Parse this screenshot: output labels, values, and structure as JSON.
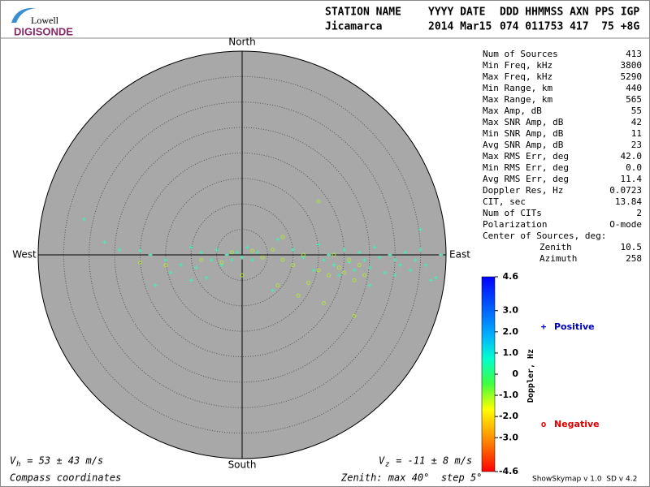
{
  "logo": {
    "top": "Lowell",
    "bottom": "DIGISONDE"
  },
  "header": {
    "labels": [
      "STATION NAME",
      "YYYY DATE",
      "DDD HHMMSS AXN PPS IGP"
    ],
    "values": [
      "Jicamarca",
      "2014 Mar15",
      "074 011753 417  75 +8G"
    ]
  },
  "stats": [
    {
      "label": "Num of Sources",
      "value": "413"
    },
    {
      "label": "Min Freq, kHz",
      "value": "3800"
    },
    {
      "label": "Max Freq, kHz",
      "value": "5290"
    },
    {
      "label": "Min Range, km",
      "value": "440"
    },
    {
      "label": "Max Range, km",
      "value": "565"
    },
    {
      "label": "Max Amp, dB",
      "value": "55"
    },
    {
      "label": "Max SNR Amp, dB",
      "value": "42"
    },
    {
      "label": "Min SNR Amp, dB",
      "value": "11"
    },
    {
      "label": "Avg SNR Amp, dB",
      "value": "23"
    },
    {
      "label": "Max RMS Err, deg",
      "value": "42.0"
    },
    {
      "label": "Min RMS Err, deg",
      "value": "0.0"
    },
    {
      "label": "Avg RMS Err, deg",
      "value": "11.4"
    },
    {
      "label": "Doppler Res, Hz",
      "value": "0.0723"
    },
    {
      "label": "CIT, sec",
      "value": "13.84"
    },
    {
      "label": "Num of CITs",
      "value": "2"
    },
    {
      "label": "Polarization",
      "value": "O-mode"
    },
    {
      "label": "Center of Sources, deg:",
      "value": ""
    }
  ],
  "center": [
    {
      "label": "Zenith",
      "value": "10.5"
    },
    {
      "label": "Azimuth",
      "value": "258"
    }
  ],
  "footer": {
    "vh": {
      "symbol": "V",
      "sub": "h",
      "text": " = 53 ± 43 m/s"
    },
    "vz": {
      "symbol": "V",
      "sub": "z",
      "text": " = -11 ± 8 m/s"
    },
    "coords": "Compass coordinates",
    "zenith": "Zenith: max 40°  step 5°",
    "version": "ShowSkymap v 1.0  SD v 4.2"
  },
  "chart_data": {
    "type": "scatter",
    "compass": {
      "north": "North",
      "south": "South",
      "east": "East",
      "west": "West"
    },
    "rlim": [
      0,
      40
    ],
    "rings": [
      5,
      10,
      15,
      20,
      25,
      30,
      35
    ],
    "series": [
      {
        "name": "Positive",
        "marker": "+",
        "color": "#40f0b0",
        "legend_color": "#0000c0",
        "x": [
          -31,
          -27,
          -24,
          -20,
          -18,
          -15,
          -14,
          -12,
          -10,
          -9,
          -8,
          -7,
          -6,
          -5,
          -4,
          -3,
          -2,
          -1,
          0,
          1,
          2,
          3,
          7,
          10,
          12,
          14,
          15,
          16,
          17,
          18,
          19,
          20,
          21,
          22,
          23,
          24,
          25,
          26,
          27,
          28,
          29,
          30,
          31,
          32,
          33,
          34,
          35,
          36,
          37,
          39,
          35,
          -17,
          -10,
          6,
          25,
          30,
          38
        ],
        "y": [
          7,
          2.5,
          1,
          0.8,
          0,
          -1,
          -3.5,
          -2,
          1.5,
          -2.5,
          0.5,
          -4.5,
          -1,
          1,
          -2,
          0,
          -1,
          0.5,
          -0.5,
          1.5,
          -1,
          0.5,
          3,
          1,
          -0.5,
          -3,
          2,
          -1,
          0,
          -2,
          -4,
          1,
          -1.5,
          -3,
          0.5,
          -1,
          -2.5,
          1.5,
          -0.5,
          -3.5,
          0,
          -1,
          -2,
          0.5,
          -3,
          -1,
          1,
          -2,
          -5,
          0,
          5,
          -6,
          -5,
          -7,
          -6,
          -4,
          -4.5
        ]
      },
      {
        "name": "Negative",
        "marker": "o",
        "color": "#b0e040",
        "legend_color": "#e00000",
        "x": [
          -20,
          -15,
          -8,
          -2,
          0,
          2,
          4,
          6,
          8,
          8,
          10,
          12,
          13,
          15,
          16,
          17,
          18,
          19,
          20,
          21,
          22,
          23,
          24,
          15,
          7,
          -4,
          22,
          11
        ],
        "y": [
          -1.5,
          -2,
          -1,
          0.5,
          -4,
          0.8,
          -0.5,
          1,
          -1,
          3.5,
          -2,
          0,
          -5.5,
          -3,
          -9.5,
          -4,
          0,
          -2.5,
          -3.5,
          -1,
          -5,
          -2,
          -4,
          10.5,
          -6,
          -1.5,
          -12,
          -8
        ]
      }
    ],
    "colorbar": {
      "label": "Doppler, Hz",
      "ylim": [
        -4.6,
        4.6
      ],
      "ticks": [
        4.6,
        {
          "value": 3,
          "label": "3.0"
        },
        {
          "value": 2,
          "label": "2.0"
        },
        {
          "value": 1,
          "label": "1.0"
        },
        0,
        {
          "value": -1,
          "label": "-1.0"
        },
        {
          "value": -2,
          "label": "-2.0"
        },
        {
          "value": -3,
          "label": "-3.0"
        },
        -4.6
      ]
    }
  }
}
